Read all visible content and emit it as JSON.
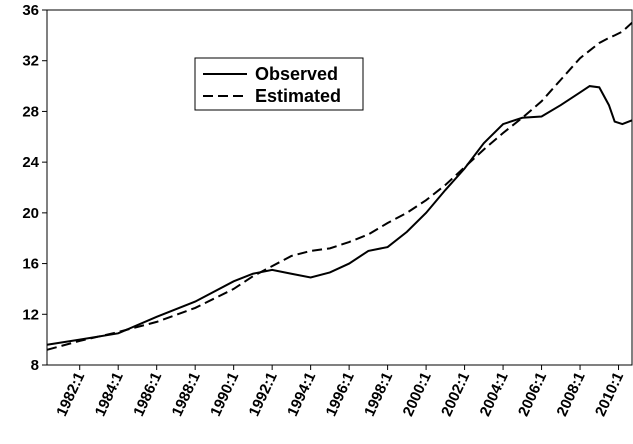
{
  "chart_data": {
    "type": "line",
    "x": [
      1980.3,
      1982,
      1984,
      1986,
      1988,
      1990,
      1991,
      1992,
      1993,
      1994,
      1995,
      1996,
      1997,
      1998,
      1999,
      2000,
      2001,
      2002,
      2003,
      2004,
      2005,
      2006,
      2007,
      2008,
      2008.5,
      2009,
      2009.5,
      2009.8,
      2010.2,
      2010.7
    ],
    "series": [
      {
        "name": "Observed",
        "color": "#000000",
        "dash": "solid",
        "values": [
          9.6,
          10.0,
          10.5,
          11.8,
          13.0,
          14.6,
          15.2,
          15.5,
          15.2,
          14.9,
          15.3,
          16.0,
          17.0,
          17.3,
          18.5,
          20.0,
          21.8,
          23.5,
          25.5,
          27.0,
          27.5,
          27.6,
          28.5,
          29.5,
          30.0,
          29.9,
          28.5,
          27.2,
          27.0,
          27.3
        ]
      },
      {
        "name": "Estimated",
        "color": "#000000",
        "dash": "dashed",
        "values": [
          9.2,
          9.9,
          10.6,
          11.4,
          12.5,
          14.0,
          15.0,
          15.8,
          16.6,
          17.0,
          17.2,
          17.7,
          18.3,
          19.2,
          20.0,
          21.0,
          22.2,
          23.6,
          25.0,
          26.3,
          27.5,
          28.8,
          30.5,
          32.2,
          32.8,
          33.4,
          33.8,
          34.0,
          34.3,
          35.0
        ]
      }
    ],
    "xlim": [
      1980.3,
      2010.7
    ],
    "xticks": [
      {
        "value": 1982,
        "label": "1982:1"
      },
      {
        "value": 1984,
        "label": "1984:1"
      },
      {
        "value": 1986,
        "label": "1986:1"
      },
      {
        "value": 1988,
        "label": "1988:1"
      },
      {
        "value": 1990,
        "label": "1990:1"
      },
      {
        "value": 1992,
        "label": "1992:1"
      },
      {
        "value": 1994,
        "label": "1994:1"
      },
      {
        "value": 1996,
        "label": "1996:1"
      },
      {
        "value": 1998,
        "label": "1998:1"
      },
      {
        "value": 2000,
        "label": "2000:1"
      },
      {
        "value": 2002,
        "label": "2002:1"
      },
      {
        "value": 2004,
        "label": "2004:1"
      },
      {
        "value": 2006,
        "label": "2006:1"
      },
      {
        "value": 2008,
        "label": "2008:1"
      },
      {
        "value": 2010,
        "label": "2010:1"
      }
    ],
    "ylim": [
      8,
      36
    ],
    "yticks": [
      8,
      12,
      16,
      20,
      24,
      28,
      32,
      36
    ],
    "legend": "upper-left"
  }
}
